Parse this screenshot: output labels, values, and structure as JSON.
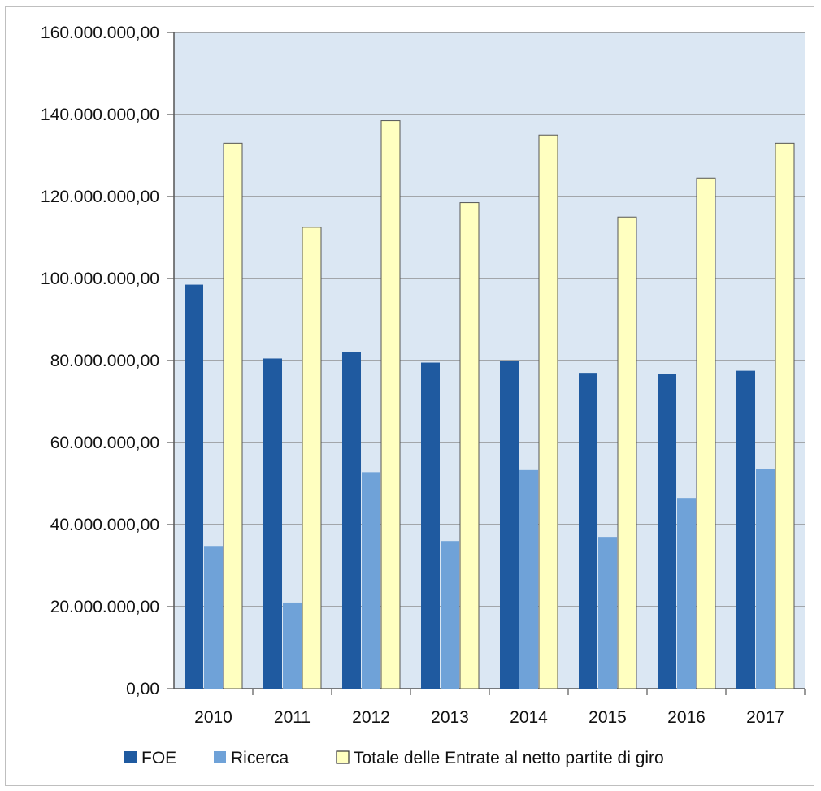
{
  "chart_data": {
    "type": "bar",
    "categories": [
      "2010",
      "2011",
      "2012",
      "2013",
      "2014",
      "2015",
      "2016",
      "2017"
    ],
    "series": [
      {
        "name": "FOE",
        "values": [
          98500000,
          80500000,
          82000000,
          79500000,
          80000000,
          77000000,
          76800000,
          77500000
        ],
        "color": "#1f5aa0"
      },
      {
        "name": "Ricerca",
        "values": [
          34800000,
          21000000,
          52800000,
          36000000,
          53300000,
          37000000,
          46500000,
          53500000
        ],
        "color": "#6fa2d8"
      },
      {
        "name": "Totale delle Entrate al netto partite di giro",
        "values": [
          133000000,
          112500000,
          138500000,
          118500000,
          135000000,
          115000000,
          124500000,
          133000000
        ],
        "color": "#ffffc0"
      }
    ],
    "ylim": [
      0,
      160000000
    ],
    "yticks": [
      0,
      20000000,
      40000000,
      60000000,
      80000000,
      100000000,
      120000000,
      140000000,
      160000000
    ],
    "ytick_labels": [
      "0,00",
      "20.000.000,00",
      "40.000.000,00",
      "60.000.000,00",
      "80.000.000,00",
      "100.000.000,00",
      "120.000.000,00",
      "140.000.000,00",
      "160.000.000,00"
    ],
    "title": "",
    "xlabel": "",
    "ylabel": "",
    "grid": true,
    "legend_position": "bottom",
    "plot_background": "#dbe7f3",
    "grid_color": "#7f7f7f"
  }
}
